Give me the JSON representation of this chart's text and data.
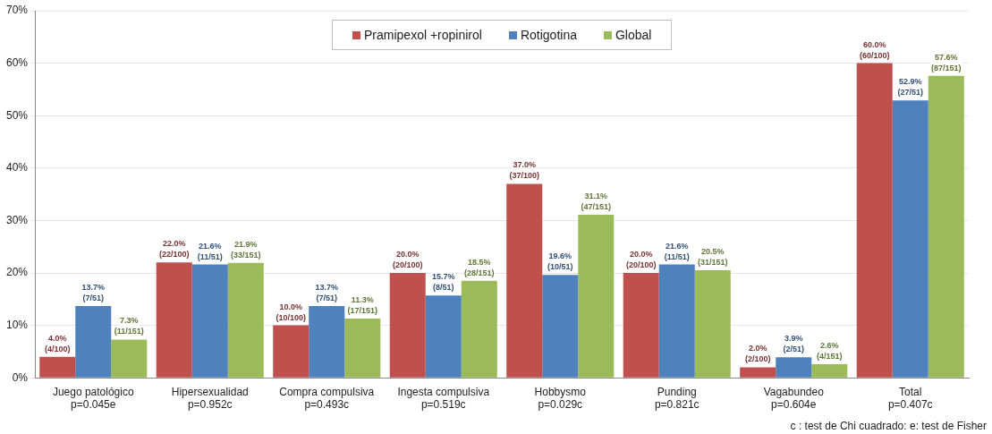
{
  "chart_data": {
    "type": "bar",
    "categories": [
      "Juego patológico\np=0.045e",
      "Hipersexualidad\np=0.952c",
      "Compra compulsiva\np=0.493c",
      "Ingesta compulsiva\np=0.519c",
      "Hobbysmo\np=0.029c",
      "Punding\np=0.821c",
      "Vagabundeo\np=0.604e",
      "Total\np=0.407c"
    ],
    "series": [
      {
        "name": "Pramipexol +ropinirol",
        "color": "#c0504d",
        "values": [
          4.0,
          22.0,
          10.0,
          20.0,
          37.0,
          20.0,
          2.0,
          60.0
        ],
        "value_labels": [
          "4.0%\n(4/100)",
          "22.0%\n(22/100)",
          "10.0%\n(10/100)",
          "20.0%\n(20/100)",
          "37.0%\n(37/100)",
          "20.0%\n(20/100)",
          "2.0%\n(2/100)",
          "60.0%\n(60/100)"
        ]
      },
      {
        "name": "Rotigotina",
        "color": "#4f81bd",
        "values": [
          13.7,
          21.6,
          13.7,
          15.7,
          19.6,
          21.6,
          3.9,
          52.9
        ],
        "value_labels": [
          "13.7%\n(7/51)",
          "21.6%\n(11/51)",
          "13.7%\n(7/51)",
          "15.7%\n(8/51)",
          "19.6%\n(10/51)",
          "21.6%\n(11/51)",
          "3.9%\n(2/51)",
          "52.9%\n(27/51)"
        ]
      },
      {
        "name": "Global",
        "color": "#9bbb59",
        "values": [
          7.3,
          21.9,
          11.3,
          18.5,
          31.1,
          20.5,
          2.6,
          57.6
        ],
        "value_labels": [
          "7.3%\n(11/151)",
          "21.9%\n(33/151)",
          "11.3%\n(17/151)",
          "18.5%\n(28/151)",
          "31.1%\n(47/151)",
          "20.5%\n(31/151)",
          "2.6%\n(4/151)",
          "57.6%\n(87/151)"
        ]
      }
    ],
    "ylim": [
      0,
      70
    ],
    "yticks": [
      {
        "value": 0,
        "label": "0%"
      },
      {
        "value": 10,
        "label": "10%"
      },
      {
        "value": 20,
        "label": "20%"
      },
      {
        "value": 30,
        "label": "30%"
      },
      {
        "value": 40,
        "label": "40%"
      },
      {
        "value": 50,
        "label": "50%"
      },
      {
        "value": 60,
        "label": "60%"
      },
      {
        "value": 70,
        "label": "70%"
      }
    ],
    "grid": "y",
    "legend": "top",
    "annotations": [
      "c : test de Chi cuadrado: e: test de Fisher"
    ]
  }
}
